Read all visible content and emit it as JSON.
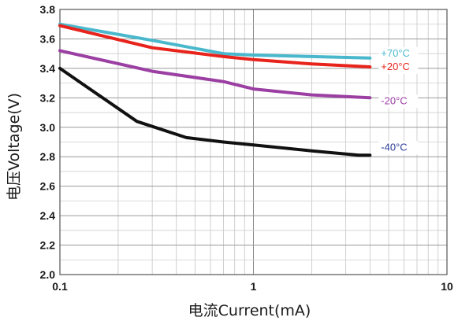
{
  "chart_data": {
    "type": "line",
    "x_scale": "log",
    "xlim": [
      0.1,
      10
    ],
    "ylim": [
      2.0,
      3.8
    ],
    "grid": true,
    "xlabel": "电流Current(mA)",
    "ylabel": "电压Voltage(V)",
    "x_tick_labels": [
      {
        "value": 0.1,
        "label": "0.1"
      },
      {
        "value": 1,
        "label": "1"
      },
      {
        "value": 10,
        "label": "10"
      }
    ],
    "y_tick_labels": [
      {
        "value": 2.0,
        "label": "2.0"
      },
      {
        "value": 2.2,
        "label": "2.2"
      },
      {
        "value": 2.4,
        "label": "2.4"
      },
      {
        "value": 2.6,
        "label": "2.6"
      },
      {
        "value": 2.8,
        "label": "2.8"
      },
      {
        "value": 3.0,
        "label": "3.0"
      },
      {
        "value": 3.2,
        "label": "3.2"
      },
      {
        "value": 3.4,
        "label": "3.4"
      },
      {
        "value": 3.6,
        "label": "3.6"
      },
      {
        "value": 3.8,
        "label": "3.8"
      }
    ],
    "series": [
      {
        "name": "+70°C",
        "color": "#4ab8cc",
        "points": [
          [
            0.1,
            3.7
          ],
          [
            0.3,
            3.59
          ],
          [
            0.7,
            3.5
          ],
          [
            1.0,
            3.49
          ],
          [
            2.0,
            3.48
          ],
          [
            4.0,
            3.47
          ]
        ]
      },
      {
        "name": "+20°C",
        "color": "#e8231b",
        "points": [
          [
            0.1,
            3.69
          ],
          [
            0.3,
            3.54
          ],
          [
            0.7,
            3.48
          ],
          [
            1.0,
            3.46
          ],
          [
            2.0,
            3.43
          ],
          [
            4.0,
            3.41
          ]
        ]
      },
      {
        "name": "-20°C",
        "color": "#9b3fa3",
        "points": [
          [
            0.1,
            3.52
          ],
          [
            0.3,
            3.38
          ],
          [
            0.7,
            3.31
          ],
          [
            1.0,
            3.26
          ],
          [
            2.0,
            3.22
          ],
          [
            4.0,
            3.2
          ]
        ]
      },
      {
        "name": "-40°C",
        "color": "#111111",
        "label_color": "#2a3d9a",
        "points": [
          [
            0.1,
            3.4
          ],
          [
            0.25,
            3.04
          ],
          [
            0.45,
            2.93
          ],
          [
            0.7,
            2.9
          ],
          [
            1.0,
            2.88
          ],
          [
            2.0,
            2.84
          ],
          [
            3.5,
            2.81
          ],
          [
            4.0,
            2.81
          ]
        ]
      }
    ]
  }
}
